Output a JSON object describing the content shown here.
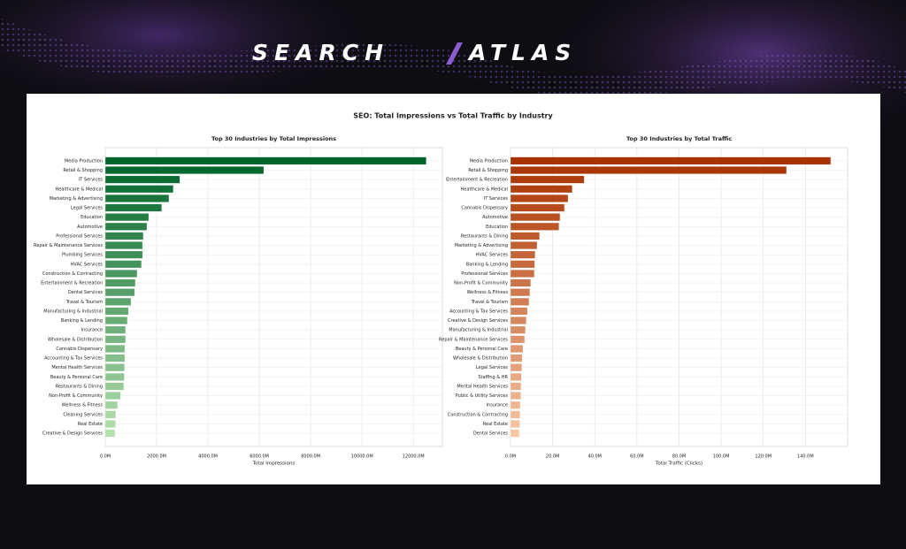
{
  "brand": [
    "SEARCH",
    "ATLAS"
  ],
  "figure_title": "SEO: Total Impressions vs Total Traffic by Industry",
  "chart_data": [
    {
      "type": "barh",
      "title": "Top 30 Industries by Total Impressions",
      "x_label": "Total Impressions",
      "categories": [
        "Media Production",
        "Retail & Shopping",
        "IT Services",
        "Healthcare & Medical",
        "Marketing & Advertising",
        "Legal Services",
        "Education",
        "Automotive",
        "Professional Services",
        "Repair & Maintenance Services",
        "Plumbing Services",
        "HVAC Services",
        "Construction & Contracting",
        "Entertainment & Recreation",
        "Dental Services",
        "Travel & Tourism",
        "Manufacturing & Industrial",
        "Banking & Lending",
        "Insurance",
        "Wholesale & Distribution",
        "Cannabis Dispensary",
        "Accounting & Tax Services",
        "Mental Health Services",
        "Beauty & Personal Care",
        "Restaurants & Dining",
        "Non-Profit & Community",
        "Wellness & Fitness",
        "Cleaning Services",
        "Real Estate",
        "Creative & Design Services"
      ],
      "values": [
        12500,
        6170,
        2900,
        2650,
        2480,
        2200,
        1690,
        1620,
        1480,
        1450,
        1450,
        1410,
        1240,
        1170,
        1140,
        1000,
        900,
        860,
        790,
        790,
        760,
        760,
        750,
        740,
        720,
        590,
        480,
        410,
        400,
        380
      ],
      "colors": [
        "#00632a",
        "#b5dfae"
      ],
      "xlim": [
        0,
        13130
      ],
      "xticks": [
        {
          "value": 0,
          "label": "0.0M"
        },
        {
          "value": 2000,
          "label": "2000.0M"
        },
        {
          "value": 4000,
          "label": "4000.0M"
        },
        {
          "value": 6000,
          "label": "6000.0M"
        },
        {
          "value": 8000,
          "label": "8000.0M"
        },
        {
          "value": 10000,
          "label": "10000.0M"
        },
        {
          "value": 12000,
          "label": "12000.0M"
        }
      ],
      "grid": true
    },
    {
      "type": "barh",
      "title": "Top 30 Industries by Total Traffic",
      "x_label": "Total Traffic (Clicks)",
      "categories": [
        "Media Production",
        "Retail & Shopping",
        "Entertainment & Recreation",
        "Healthcare & Medical",
        "IT Services",
        "Cannabis Dispensary",
        "Automotive",
        "Education",
        "Restaurants & Dining",
        "Marketing & Advertising",
        "HVAC Services",
        "Banking & Lending",
        "Professional Services",
        "Non-Profit & Community",
        "Wellness & Fitness",
        "Travel & Tourism",
        "Accounting & Tax Services",
        "Creative & Design Services",
        "Manufacturing & Industrial",
        "Repair & Maintenance Services",
        "Beauty & Personal Care",
        "Wholesale & Distribution",
        "Legal Services",
        "Staffing & HR",
        "Mental Health Services",
        "Public & Utility Services",
        "Insurance",
        "Construction & Contracting",
        "Real Estate",
        "Dental Services"
      ],
      "values": [
        152,
        131,
        35,
        29.3,
        27.3,
        25.6,
        23.5,
        23,
        13.8,
        12.6,
        11.7,
        11.5,
        11.3,
        9.6,
        9.2,
        8.8,
        8,
        7.5,
        7.1,
        6.7,
        5.9,
        5.5,
        5.4,
        5.1,
        5,
        4.9,
        4.6,
        4.5,
        4.4,
        4.2
      ],
      "colors": [
        "#a83200",
        "#f7c5a3"
      ],
      "xlim": [
        0,
        160
      ],
      "xticks": [
        {
          "value": 0,
          "label": "0.0M"
        },
        {
          "value": 20,
          "label": "20.0M"
        },
        {
          "value": 40,
          "label": "40.0M"
        },
        {
          "value": 60,
          "label": "60.0M"
        },
        {
          "value": 80,
          "label": "80.0M"
        },
        {
          "value": 100,
          "label": "100.0M"
        },
        {
          "value": 120,
          "label": "120.0M"
        },
        {
          "value": 140,
          "label": "140.0M"
        }
      ],
      "grid": true
    }
  ]
}
